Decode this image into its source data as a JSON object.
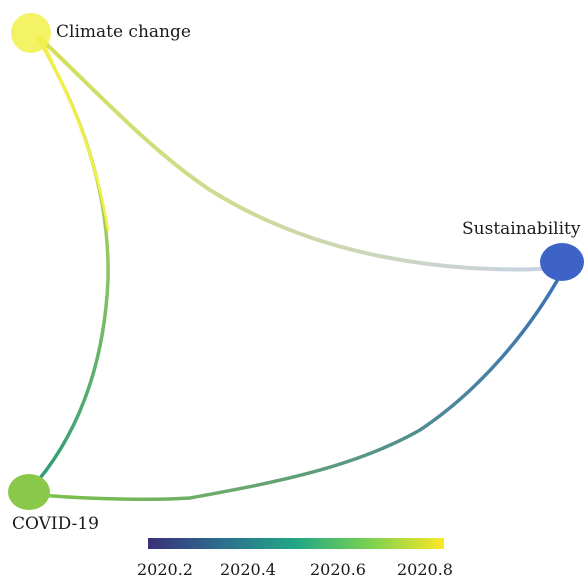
{
  "nodes": [
    {
      "id": "climate",
      "label": "Climate change",
      "color": "#f2f04a"
    },
    {
      "id": "sustainability",
      "label": "Sustainability",
      "color": "#3e63c6"
    },
    {
      "id": "covid",
      "label": "COVID-19",
      "color": "#8ac84a"
    }
  ],
  "edges": [
    {
      "from": "climate",
      "to": "sustainability",
      "color_from": "#d4e055",
      "color_to": "#c8d2e6"
    },
    {
      "from": "climate",
      "to": "covid",
      "color_from": "#f4f04a",
      "color_to": "#2a9a78"
    },
    {
      "from": "covid",
      "to": "sustainability",
      "color_from": "#7ec24a",
      "color_to": "#3a70b8"
    }
  ],
  "colorbar": {
    "ticks": [
      "2020.2",
      "2020.4",
      "2020.6",
      "2020.8"
    ],
    "stops": [
      "#3b2f7a",
      "#2c6e8e",
      "#22a785",
      "#7ad151",
      "#fde725"
    ]
  }
}
